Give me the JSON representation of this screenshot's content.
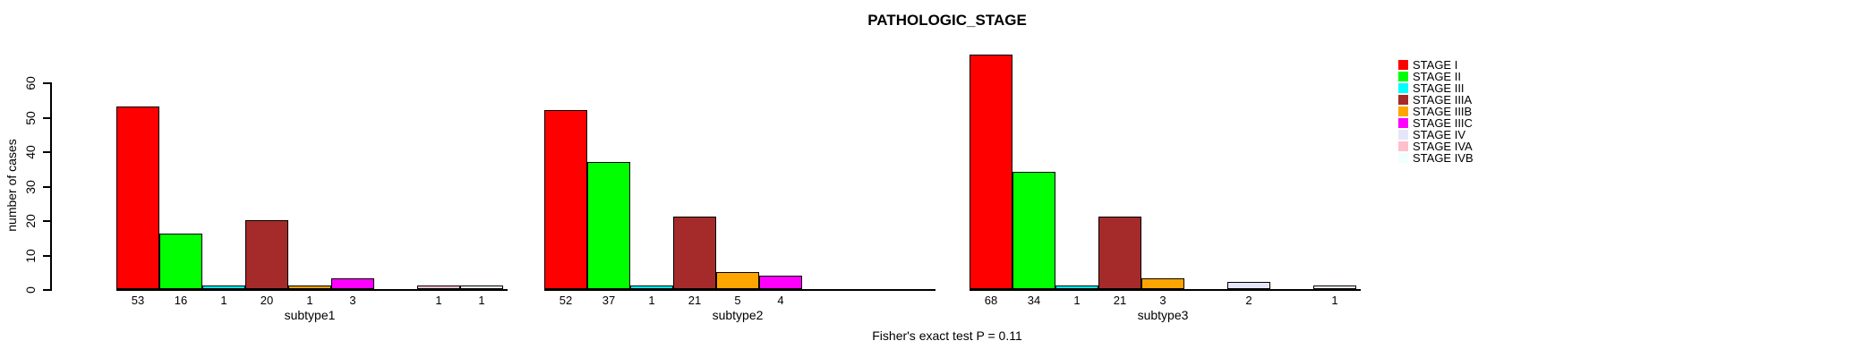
{
  "chart_data": {
    "type": "bar",
    "title": "PATHOLOGIC_STAGE",
    "ylabel": "number of cases",
    "footer": "Fisher's exact test P = 0.11",
    "ylim": [
      0,
      60
    ],
    "yticks": [
      0,
      10,
      20,
      30,
      40,
      50,
      60
    ],
    "grid": false,
    "legend_position": "right",
    "categories": [
      "STAGE I",
      "STAGE II",
      "STAGE III",
      "STAGE IIIA",
      "STAGE IIIB",
      "STAGE IIIC",
      "STAGE IV",
      "STAGE IVA",
      "STAGE IVB"
    ],
    "colors": [
      "#FF0000",
      "#00FF00",
      "#00FFFF",
      "#A52A2A",
      "#FFA500",
      "#FF00FF",
      "#E6E6FA",
      "#FFC0CB",
      "#F0FFFF"
    ],
    "panels": [
      {
        "xlabel": "subtype1",
        "values": [
          53,
          16,
          1,
          20,
          1,
          3,
          0,
          1,
          1
        ]
      },
      {
        "xlabel": "subtype2",
        "values": [
          52,
          37,
          1,
          21,
          5,
          4,
          0,
          0,
          0
        ]
      },
      {
        "xlabel": "subtype3",
        "values": [
          68,
          34,
          1,
          21,
          3,
          0,
          2,
          0,
          1
        ]
      }
    ]
  }
}
